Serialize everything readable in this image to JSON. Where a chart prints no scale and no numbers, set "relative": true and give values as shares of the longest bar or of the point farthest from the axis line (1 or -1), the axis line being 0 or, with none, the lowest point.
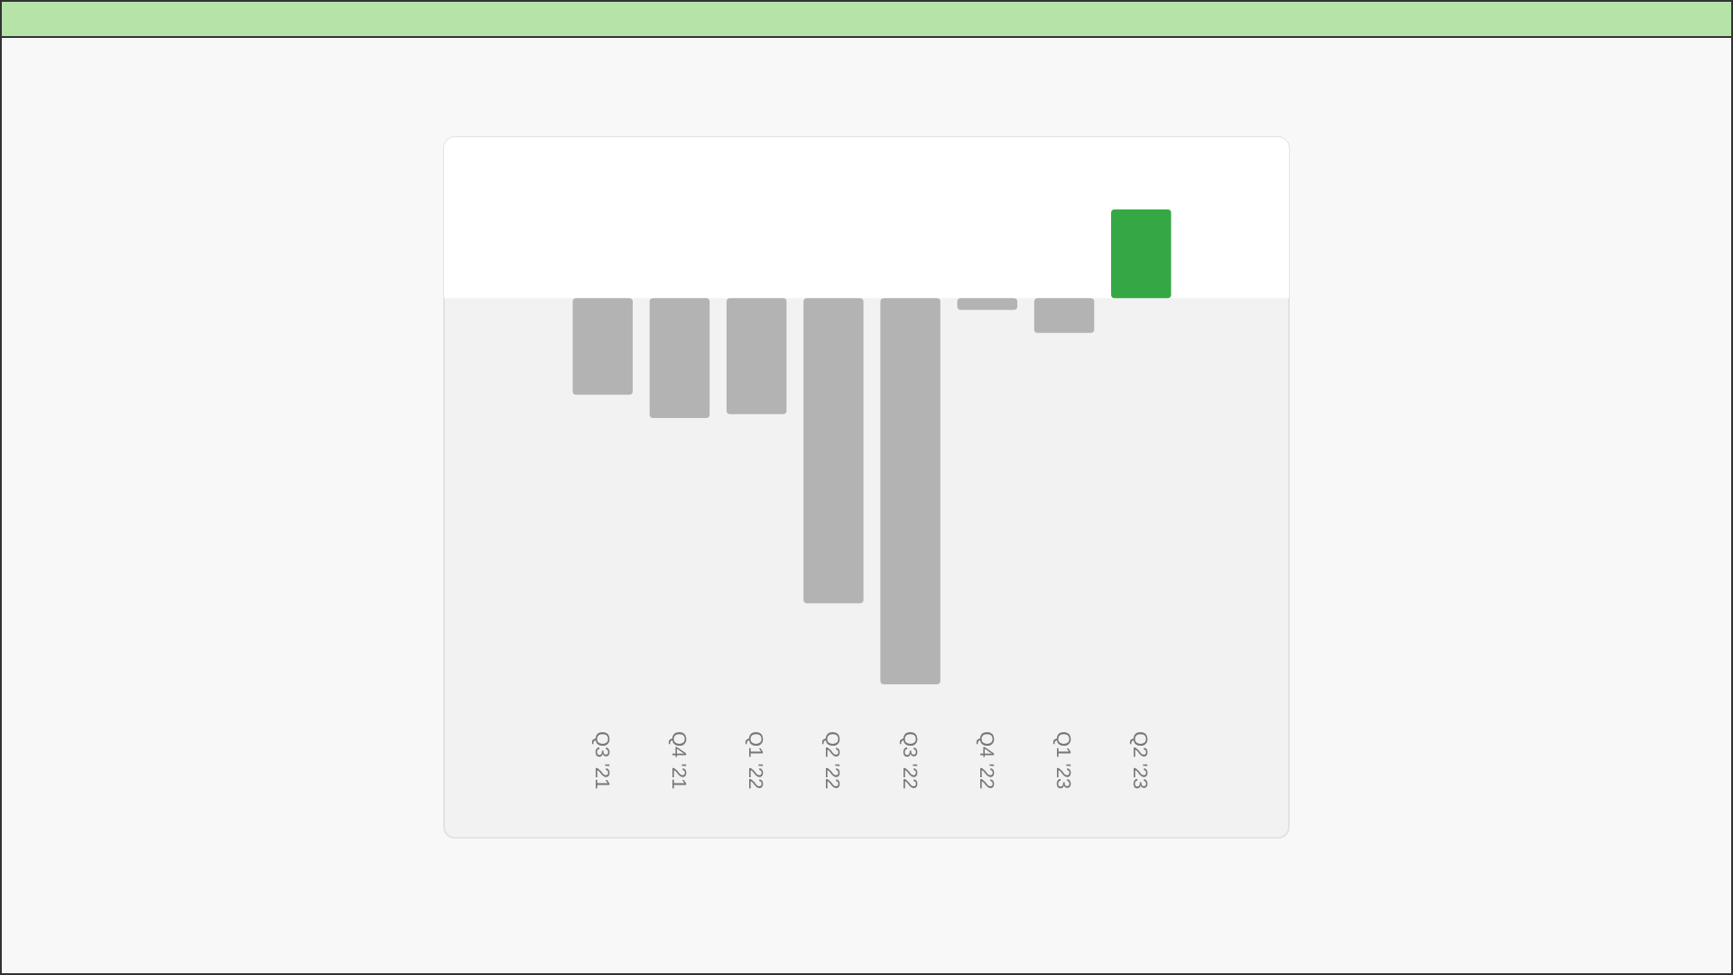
{
  "chart_data": {
    "type": "bar",
    "relative": true,
    "categories": [
      "Q3 '21",
      "Q4 '21",
      "Q1 '22",
      "Q2 '22",
      "Q3 '22",
      "Q4 '22",
      "Q1 '23",
      "Q2 '23"
    ],
    "values": [
      -0.25,
      -0.31,
      -0.3,
      -0.79,
      -1,
      -0.03,
      -0.09,
      0.23
    ],
    "colors": [
      "#b3b3b3",
      "#b3b3b3",
      "#b3b3b3",
      "#b3b3b3",
      "#b3b3b3",
      "#b3b3b3",
      "#b3b3b3",
      "#34a844"
    ]
  }
}
